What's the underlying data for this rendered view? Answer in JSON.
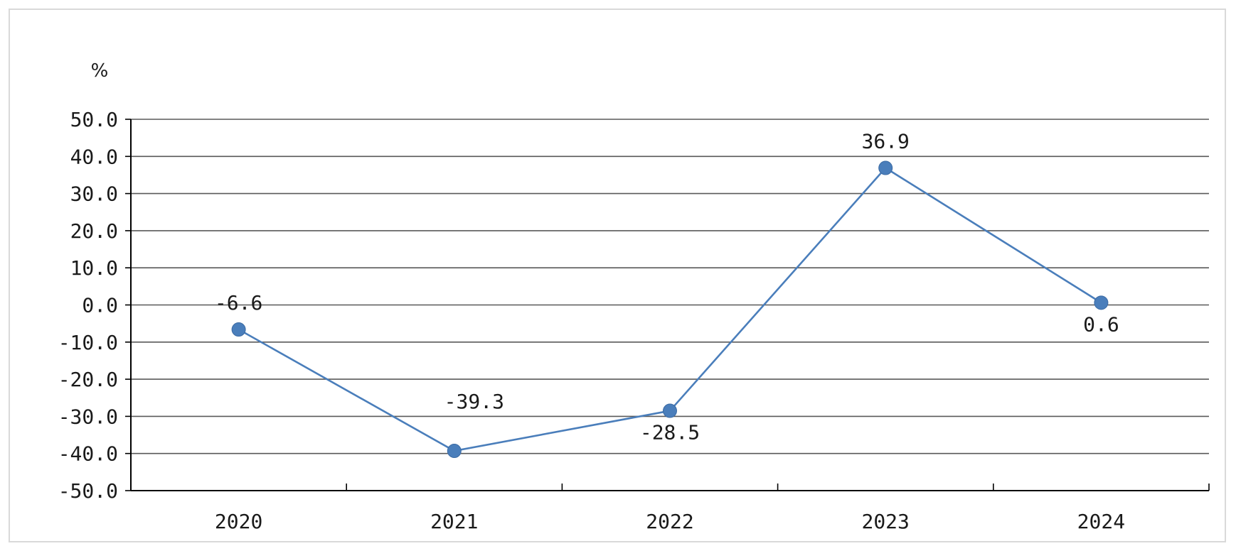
{
  "chart_data": {
    "type": "line",
    "unit": "%",
    "categories": [
      "2020",
      "2021",
      "2022",
      "2023",
      "2024"
    ],
    "series": [
      {
        "values": [
          -6.6,
          -39.3,
          -28.5,
          36.9,
          0.6
        ],
        "data_labels": [
          "-6.6",
          "-39.3",
          "-28.5",
          "36.9",
          "0.6"
        ],
        "color": "#4a7ebb"
      }
    ],
    "y_ticks": [
      "50.0",
      "40.0",
      "30.0",
      "20.0",
      "10.0",
      "0.0",
      "-10.0",
      "-20.0",
      "-30.0",
      "-40.0",
      "-50.0"
    ],
    "ylim": [
      -50,
      50
    ],
    "y_step": 10,
    "grid": true,
    "legend": "none",
    "colors": {
      "grid": "#595959",
      "axis": "#000000",
      "line": "#4a7ebb",
      "marker": "#4a7ebb"
    }
  }
}
